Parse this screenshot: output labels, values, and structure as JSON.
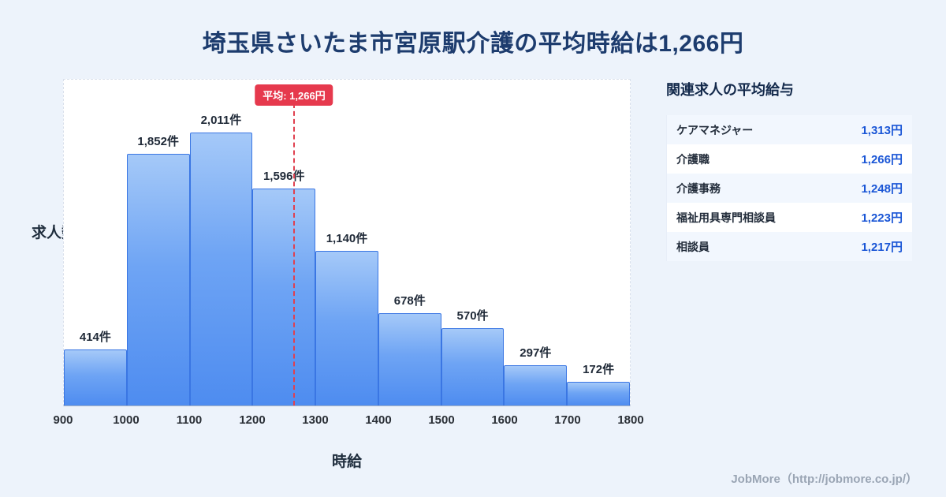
{
  "page": {
    "title": "埼玉県さいたま市宮原駅介護の平均時給は1,266円",
    "footer": "JobMore（http://jobmore.co.jp/）"
  },
  "chart_data": {
    "type": "bar",
    "title": "埼玉県さいたま市宮原駅介護の平均時給は1,266円",
    "xlabel": "時給",
    "ylabel": "求人数",
    "x_ticks": [
      900,
      1000,
      1100,
      1200,
      1300,
      1400,
      1500,
      1600,
      1700,
      1800
    ],
    "categories": [
      "900-1000",
      "1000-1100",
      "1100-1200",
      "1200-1300",
      "1300-1400",
      "1400-1500",
      "1500-1600",
      "1600-1700",
      "1700-1800"
    ],
    "values": [
      414,
      1852,
      2011,
      1596,
      1140,
      678,
      570,
      297,
      172
    ],
    "value_labels": [
      "414件",
      "1,852件",
      "2,011件",
      "1,596件",
      "1,140件",
      "678件",
      "570件",
      "297件",
      "172件"
    ],
    "average": 1266,
    "average_label": "平均: 1,266円",
    "x_range": [
      900,
      1800
    ],
    "ylim": [
      0,
      2400
    ],
    "grid": false,
    "legend": "none",
    "bar_color_top": "#a5c9f8",
    "bar_color_bottom": "#4e8cf0",
    "bar_border_color": "#3a76e3",
    "average_line_color": "#e0404f"
  },
  "side_panel": {
    "title": "関連求人の平均給与",
    "value_color": "#1a56d6",
    "rows": [
      {
        "label": "ケアマネジャー",
        "value": "1,313円"
      },
      {
        "label": "介護職",
        "value": "1,266円"
      },
      {
        "label": "介護事務",
        "value": "1,248円"
      },
      {
        "label": "福祉用具専門相談員",
        "value": "1,223円"
      },
      {
        "label": "相談員",
        "value": "1,217円"
      }
    ]
  }
}
